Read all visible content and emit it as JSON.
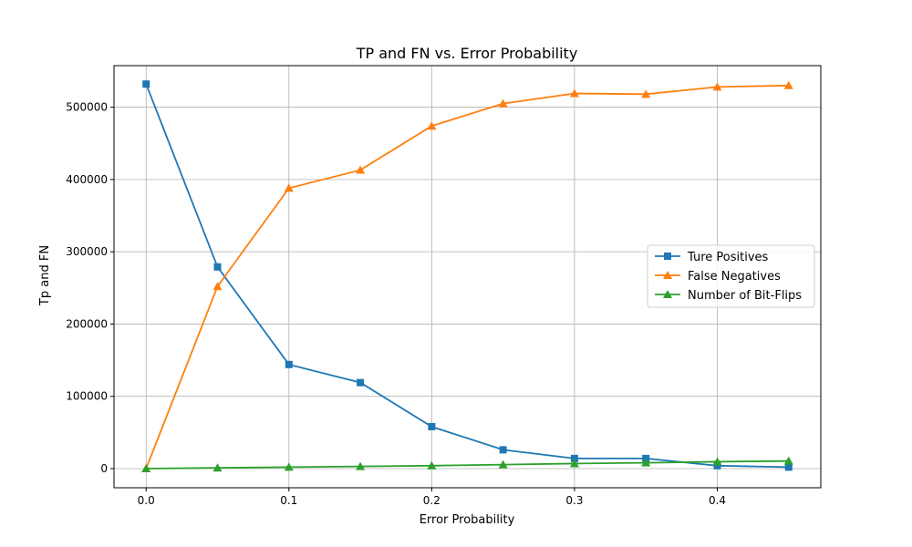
{
  "chart_data": {
    "type": "line",
    "title": "TP and FN vs. Error Probability",
    "xlabel": "Error Probability",
    "ylabel": "Tp and FN",
    "xlim": [
      -0.0225,
      0.4725
    ],
    "ylim": [
      -26500,
      557500
    ],
    "xticks": [
      0.0,
      0.1,
      0.2,
      0.3,
      0.4
    ],
    "xtick_labels": [
      "0.0",
      "0.1",
      "0.2",
      "0.3",
      "0.4"
    ],
    "yticks": [
      0,
      100000,
      200000,
      300000,
      400000,
      500000
    ],
    "ytick_labels": [
      "0",
      "100000",
      "200000",
      "300000",
      "400000",
      "500000"
    ],
    "grid": true,
    "legend_position": "center-right",
    "x": [
      0.0,
      0.05,
      0.1,
      0.15,
      0.2,
      0.25,
      0.3,
      0.35,
      0.4,
      0.45
    ],
    "series": [
      {
        "name": "Ture Positives",
        "color": "#1f77b4",
        "marker": "square",
        "values": [
          532000,
          279000,
          144000,
          119000,
          58000,
          26000,
          14000,
          14000,
          4000,
          2000
        ]
      },
      {
        "name": "False Negatives",
        "color": "#ff7f0e",
        "marker": "triangle",
        "values": [
          0,
          252000,
          388000,
          413000,
          474000,
          505000,
          519000,
          518000,
          528000,
          530000
        ]
      },
      {
        "name": "Number of Bit-Flips",
        "color": "#2ca02c",
        "marker": "triangle",
        "values": [
          0,
          1000,
          2000,
          3000,
          4000,
          5500,
          7000,
          8000,
          9500,
          10500
        ]
      }
    ]
  }
}
